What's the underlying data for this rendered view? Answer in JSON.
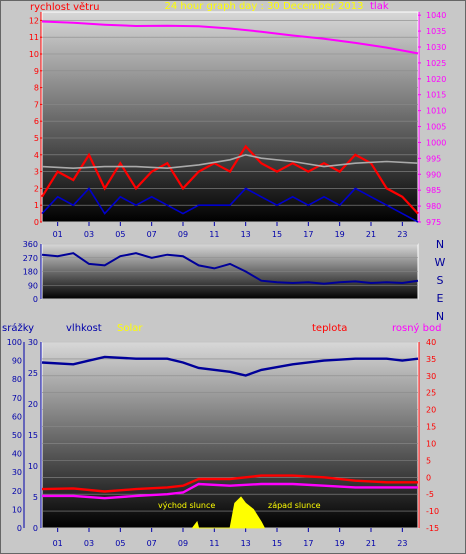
{
  "chart_data": [
    {
      "type": "line",
      "title": "24 hour graph day : 30 December 2013",
      "left_axis_label": "rychlost větru",
      "right_axis_label": "tlak",
      "left_ylim": [
        0,
        12.5
      ],
      "left_ticks": [
        "0",
        "1",
        "2",
        "3",
        "4",
        "5",
        "6",
        "7",
        "8",
        "9",
        "10",
        "11",
        "12"
      ],
      "right_ylim": [
        975,
        1041
      ],
      "right_ticks": [
        "975",
        "980",
        "985",
        "990",
        "995",
        "1000",
        "1005",
        "1010",
        "1015",
        "1020",
        "1025",
        "1030",
        "1035",
        "1040"
      ],
      "x_ticks": [
        "01",
        "03",
        "05",
        "07",
        "09",
        "11",
        "13",
        "15",
        "17",
        "19",
        "21",
        "23"
      ],
      "xlim": [
        0,
        24
      ],
      "series": [
        {
          "role": "pressure",
          "axis": "right",
          "color": "#ff00ff",
          "x": [
            0,
            2,
            4,
            6,
            8,
            10,
            12,
            14,
            16,
            18,
            20,
            22,
            24
          ],
          "y": [
            1038.0,
            1037.6,
            1037.0,
            1036.6,
            1036.7,
            1036.5,
            1035.8,
            1034.8,
            1033.6,
            1032.6,
            1031.3,
            1029.8,
            1028.0
          ]
        },
        {
          "role": "gust",
          "axis": "left",
          "color": "#ff0000",
          "x": [
            0,
            1,
            2,
            3,
            4,
            5,
            6,
            7,
            8,
            9,
            10,
            11,
            12,
            13,
            14,
            15,
            16,
            17,
            18,
            19,
            20,
            21,
            22,
            23,
            24
          ],
          "y": [
            1.5,
            3.0,
            2.5,
            4.0,
            2.0,
            3.5,
            2.0,
            3.0,
            3.5,
            2.0,
            3.0,
            3.5,
            3.0,
            4.5,
            3.5,
            3.0,
            3.5,
            3.0,
            3.5,
            3.0,
            4.0,
            3.5,
            2.0,
            1.5,
            0.5
          ]
        },
        {
          "role": "average",
          "axis": "left",
          "color": "#0000cc",
          "x": [
            0,
            1,
            2,
            3,
            4,
            5,
            6,
            7,
            8,
            9,
            10,
            11,
            12,
            13,
            14,
            15,
            16,
            17,
            18,
            19,
            20,
            21,
            22,
            23,
            24
          ],
          "y": [
            0.5,
            1.5,
            1.0,
            2.0,
            0.5,
            1.5,
            1.0,
            1.5,
            1.0,
            0.5,
            1.0,
            1.0,
            1.0,
            2.0,
            1.5,
            1.0,
            1.5,
            1.0,
            1.5,
            1.0,
            2.0,
            1.5,
            1.0,
            0.5,
            0.0
          ]
        },
        {
          "role": "max",
          "axis": "left",
          "color": "#aaaaaa",
          "x": [
            0,
            2,
            4,
            6,
            8,
            10,
            12,
            13,
            14,
            16,
            18,
            20,
            22,
            24
          ],
          "y": [
            3.3,
            3.2,
            3.3,
            3.3,
            3.2,
            3.4,
            3.7,
            4.0,
            3.8,
            3.6,
            3.3,
            3.5,
            3.6,
            3.5
          ]
        }
      ]
    },
    {
      "type": "line",
      "title": "",
      "ylim": [
        0,
        360
      ],
      "y_ticks": [
        "0",
        "90",
        "180",
        "270",
        "360"
      ],
      "compass": [
        "N",
        "W",
        "S",
        "E",
        "N"
      ],
      "xlim": [
        0,
        24
      ],
      "series": [
        {
          "role": "direction",
          "color": "#000099",
          "x": [
            0,
            1,
            2,
            3,
            4,
            5,
            6,
            7,
            8,
            9,
            10,
            11,
            12,
            13,
            14,
            15,
            16,
            17,
            18,
            19,
            20,
            21,
            22,
            23,
            24
          ],
          "y": [
            290,
            280,
            300,
            230,
            220,
            280,
            300,
            270,
            290,
            280,
            220,
            200,
            230,
            180,
            120,
            110,
            105,
            110,
            100,
            110,
            115,
            105,
            110,
            105,
            120
          ]
        }
      ]
    },
    {
      "type": "line",
      "title": "",
      "labels": {
        "rain": "srážky",
        "humidity": "vlhkost",
        "solar": "Solar",
        "temperature": "teplota",
        "dewpoint": "rosný bod"
      },
      "rain_ticks": [
        "0",
        "5",
        "10",
        "15",
        "20",
        "25",
        "30"
      ],
      "humidity_ticks": [
        "0",
        "10",
        "20",
        "30",
        "40",
        "50",
        "60",
        "70",
        "80",
        "90",
        "100"
      ],
      "temp_ticks": [
        "-15",
        "-10",
        "-5",
        "0",
        "5",
        "10",
        "15",
        "20",
        "25",
        "30",
        "35",
        "40"
      ],
      "x_ticks": [
        "01",
        "03",
        "05",
        "07",
        "09",
        "11",
        "13",
        "15",
        "17",
        "19",
        "21",
        "23"
      ],
      "annotations": [
        "východ slunce",
        "západ slunce"
      ],
      "xlim": [
        0,
        24
      ],
      "temp_ylim": [
        -15,
        40
      ],
      "series": [
        {
          "role": "humidity",
          "axis": "humidity",
          "ylim": [
            0,
            100
          ],
          "color": "#000099",
          "x": [
            0,
            2,
            3,
            4,
            6,
            8,
            9,
            10,
            12,
            13,
            14,
            16,
            18,
            20,
            22,
            23,
            24
          ],
          "y": [
            89,
            88,
            90,
            92,
            91,
            91,
            89,
            86,
            84,
            82,
            85,
            88,
            90,
            91,
            91,
            90,
            91
          ]
        },
        {
          "role": "temperature",
          "axis": "temp",
          "color": "#ff0000",
          "x": [
            0,
            2,
            4,
            6,
            8,
            9,
            10,
            12,
            14,
            16,
            18,
            20,
            22,
            24
          ],
          "y": [
            -3.5,
            -3.3,
            -4.2,
            -3.5,
            -3.0,
            -2.5,
            -0.5,
            -0.5,
            0.5,
            0.5,
            0.0,
            -1.0,
            -1.5,
            -1.5
          ]
        },
        {
          "role": "dewpoint",
          "axis": "temp",
          "color": "#ff00ff",
          "x": [
            0,
            2,
            4,
            6,
            8,
            9,
            10,
            12,
            14,
            16,
            18,
            20,
            22,
            24
          ],
          "y": [
            -5.5,
            -5.5,
            -6.2,
            -5.5,
            -5.0,
            -4.5,
            -2.0,
            -2.5,
            -2.0,
            -2.0,
            -2.5,
            -3.0,
            -3.0,
            -3.0
          ]
        },
        {
          "role": "solar",
          "axis": "rain",
          "color": "#ffff00",
          "x": [
            9.6,
            9.9,
            10.0,
            12.0,
            12.3,
            12.7,
            13.0,
            13.5,
            14.0,
            14.2
          ],
          "y": [
            0,
            1,
            0,
            0,
            4,
            5,
            4,
            3,
            1,
            0
          ]
        }
      ]
    }
  ]
}
